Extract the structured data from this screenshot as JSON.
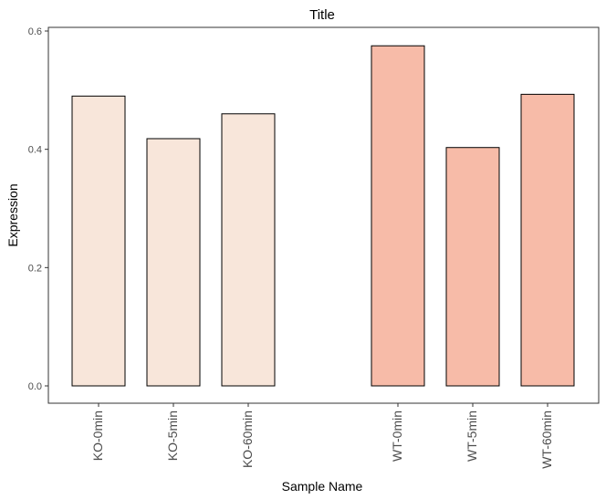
{
  "chart_data": {
    "type": "bar",
    "title": "Title",
    "xlabel": "Sample Name",
    "ylabel": "Expression",
    "ylim": [
      0,
      0.6
    ],
    "yticks": [
      "0.0",
      "0.2",
      "0.4",
      "0.6"
    ],
    "grid": false,
    "legend": "none",
    "categories": [
      "KO-0min",
      "KO-5min",
      "KO-60min",
      "WT-0min",
      "WT-5min",
      "WT-60min"
    ],
    "groups": [
      "KO",
      "KO",
      "KO",
      "WT",
      "WT",
      "WT"
    ],
    "values": [
      0.49,
      0.418,
      0.46,
      0.575,
      0.403,
      0.493
    ],
    "colors": {
      "KO": "#f8e6da",
      "WT": "#f7bba8",
      "bar_outline": "#000000",
      "panel_border": "#333333",
      "tick_text": "#4d4d4d"
    }
  }
}
